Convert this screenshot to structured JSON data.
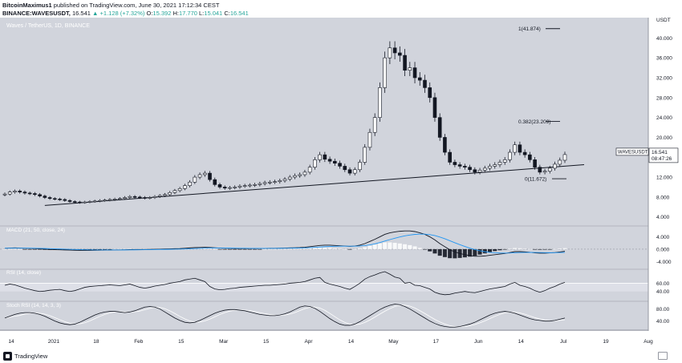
{
  "header": {
    "line1_user": "BitcoinMaximus1",
    "line1_rest": " published on TradingView.com, June 30, 2021 17:12:34 CEST",
    "ticker": "BINANCE:WAVESUSDT,",
    "price": "16.541",
    "change": "▲ +1.128 (+7.32%)",
    "o_label": "O:",
    "o_value": "15.392",
    "h_label": "H:",
    "h_value": "17.770",
    "l_label": "L:",
    "l_value": "15.041",
    "c_label": "C:",
    "c_value": "16.541"
  },
  "chart_title": "Waves / TetherUS, 1D, BINANCE",
  "currency": "USDT",
  "price_tag": {
    "symbol": "WAVESUSDT",
    "price": "16.541",
    "countdown": "08:47:26"
  },
  "fib_labels": [
    "1(41.874)",
    "0.382(23.209)",
    "0(11.672)"
  ],
  "indicator_labels": {
    "macd": "MACD (21, 50, close, 24)",
    "rsi": "RSI (14, close)",
    "stoch": "Stoch RSI (14, 14, 3, 3)"
  },
  "macd_axis": [
    "4.000",
    "0.000",
    "-4.000"
  ],
  "rsi_axis": [
    "60.00",
    "40.00"
  ],
  "stoch_axis": [
    "80.00",
    "40.00"
  ],
  "footer": {
    "brand": "TradingView"
  },
  "colors": {
    "panel_bg": "#d1d4dc",
    "band": "#e0e3eb",
    "candle": "#131722",
    "signal_line": "#2196f3",
    "white_line": "#ffffff"
  },
  "chart_data": {
    "type": "candlestick",
    "title": "Waves / TetherUS, 1D, BINANCE",
    "interval": "1D",
    "x_ticks": [
      "14",
      "2021",
      "18",
      "Feb",
      "15",
      "Mar",
      "15",
      "Apr",
      "14",
      "May",
      "17",
      "Jun",
      "14",
      "Jul",
      "19",
      "Aug"
    ],
    "y_ticks": [
      "40.000",
      "36.000",
      "32.000",
      "28.000",
      "24.000",
      "20.000",
      "16.000",
      "12.000",
      "8.000",
      "4.000"
    ],
    "ylim": [
      2.5,
      42.8
    ],
    "close_series": [
      8.6,
      9.0,
      9.2,
      9.0,
      8.8,
      8.7,
      8.5,
      8.2,
      7.9,
      7.7,
      7.6,
      7.5,
      7.3,
      7.1,
      7.0,
      6.9,
      7.0,
      7.1,
      7.2,
      7.3,
      7.4,
      7.5,
      7.6,
      7.7,
      7.9,
      8.1,
      8.0,
      7.9,
      7.8,
      7.9,
      8.1,
      8.3,
      8.5,
      8.9,
      9.3,
      9.7,
      10.3,
      11.0,
      12.0,
      12.5,
      12.8,
      11.5,
      10.5,
      10.0,
      9.8,
      9.9,
      10.0,
      10.2,
      10.3,
      10.4,
      10.5,
      10.7,
      10.9,
      11.0,
      11.1,
      11.3,
      11.6,
      12.0,
      12.3,
      12.5,
      13.0,
      14.0,
      15.5,
      16.5,
      15.6,
      15.2,
      14.8,
      14.2,
      13.5,
      12.8,
      13.5,
      15.0,
      18.0,
      21.0,
      24.0,
      30.0,
      36.0,
      38.0,
      37.0,
      36.5,
      33.5,
      34.0,
      32.0,
      31.5,
      30.0,
      28.0,
      24.0,
      20.0,
      17.0,
      15.0,
      14.5,
      14.2,
      14.0,
      13.5,
      13.0,
      13.4,
      13.8,
      14.2,
      14.5,
      15.0,
      15.5,
      17.0,
      18.5,
      17.0,
      16.5,
      15.5,
      14.0,
      13.0,
      13.2,
      13.8,
      14.6,
      15.4,
      16.541
    ],
    "macd_series": [
      0.3,
      0.35,
      0.4,
      0.35,
      0.3,
      0.25,
      0.2,
      0.1,
      0.0,
      -0.1,
      -0.15,
      -0.2,
      -0.25,
      -0.3,
      -0.35,
      -0.4,
      -0.4,
      -0.38,
      -0.35,
      -0.32,
      -0.3,
      -0.28,
      -0.25,
      -0.22,
      -0.2,
      -0.15,
      -0.12,
      -0.1,
      -0.1,
      -0.08,
      -0.05,
      0.0,
      0.05,
      0.1,
      0.15,
      0.2,
      0.3,
      0.4,
      0.5,
      0.55,
      0.6,
      0.55,
      0.45,
      0.35,
      0.3,
      0.25,
      0.2,
      0.2,
      0.2,
      0.2,
      0.2,
      0.22,
      0.25,
      0.28,
      0.3,
      0.33,
      0.36,
      0.4,
      0.45,
      0.5,
      0.6,
      0.8,
      1.0,
      1.2,
      1.3,
      1.3,
      1.2,
      1.1,
      1.0,
      0.9,
      1.0,
      1.3,
      1.8,
      2.5,
      3.2,
      4.0,
      4.8,
      5.3,
      5.6,
      5.8,
      5.9,
      5.9,
      5.7,
      5.3,
      4.8,
      4.0,
      3.0,
      1.8,
      0.8,
      -0.2,
      -0.9,
      -1.4,
      -1.8,
      -2.1,
      -2.3,
      -2.3,
      -2.2,
      -2.0,
      -1.8,
      -1.6,
      -1.4,
      -1.1,
      -0.8,
      -0.8,
      -0.9,
      -1.0,
      -1.2,
      -1.3,
      -1.3,
      -1.2,
      -1.1,
      -0.9,
      -0.7
    ],
    "rsi_series": [
      55,
      58,
      56,
      52,
      48,
      45,
      42,
      40,
      41,
      43,
      44,
      45,
      42,
      40,
      42,
      46,
      50,
      52,
      53,
      54,
      55,
      56,
      55,
      54,
      56,
      58,
      54,
      50,
      48,
      50,
      53,
      55,
      57,
      60,
      62,
      64,
      68,
      70,
      72,
      68,
      64,
      52,
      46,
      44,
      45,
      47,
      48,
      50,
      51,
      52,
      53,
      54,
      55,
      55,
      56,
      57,
      58,
      60,
      61,
      62,
      64,
      68,
      72,
      74,
      62,
      58,
      55,
      52,
      48,
      45,
      52,
      60,
      70,
      76,
      80,
      85,
      88,
      82,
      75,
      72,
      60,
      62,
      55,
      54,
      50,
      46,
      38,
      34,
      32,
      33,
      36,
      38,
      40,
      38,
      37,
      40,
      43,
      46,
      48,
      50,
      52,
      58,
      62,
      55,
      52,
      48,
      42,
      38,
      42,
      48,
      52,
      58,
      62
    ],
    "stoch_series": [
      50,
      56,
      62,
      66,
      68,
      68,
      66,
      62,
      56,
      48,
      40,
      34,
      30,
      28,
      30,
      36,
      44,
      52,
      60,
      66,
      70,
      72,
      72,
      70,
      68,
      70,
      74,
      80,
      86,
      88,
      86,
      80,
      70,
      60,
      50,
      42,
      36,
      34,
      36,
      42,
      50,
      58,
      66,
      72,
      76,
      78,
      78,
      76,
      74,
      70,
      66,
      62,
      60,
      58,
      58,
      60,
      64,
      70,
      78,
      86,
      90,
      88,
      82,
      72,
      60,
      48,
      38,
      30,
      26,
      26,
      30,
      38,
      48,
      58,
      68,
      78,
      86,
      92,
      96,
      94,
      88,
      80,
      70,
      60,
      50,
      40,
      32,
      26,
      22,
      20,
      20,
      22,
      26,
      30,
      36,
      44,
      52,
      60,
      66,
      70,
      72,
      70,
      66,
      60,
      54,
      48,
      44,
      42,
      40,
      40,
      42,
      46,
      50
    ],
    "trendline": {
      "from_value": 6.3,
      "to_value": 14.5
    },
    "fib_levels": [
      {
        "ratio": "1",
        "value": 41.874
      },
      {
        "ratio": "0.382",
        "value": 23.209
      },
      {
        "ratio": "0",
        "value": 11.672
      }
    ]
  }
}
